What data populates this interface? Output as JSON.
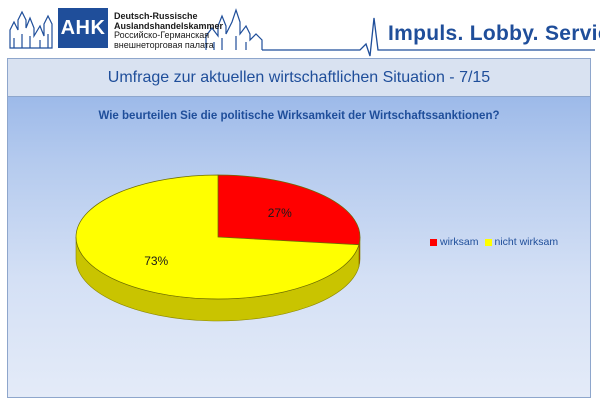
{
  "header": {
    "logo": "AHK",
    "org_line1": "Deutsch-Russische",
    "org_line2": "Auslandshandelskammer",
    "org_line3": "Российско-Германская",
    "org_line4": "внешнеторговая палата",
    "slogan": "Impuls. Lobby. Service."
  },
  "slide": {
    "title": "Umfrage zur aktuellen wirtschaftlichen Situation - 7/15"
  },
  "chart_data": {
    "type": "pie",
    "title": "Wie beurteilen Sie die politische Wirksamkeit der Wirtschaftssanktionen?",
    "categories": [
      "wirksam",
      "nicht wirksam"
    ],
    "values": [
      27,
      73
    ],
    "data_labels": [
      "27%",
      "73%"
    ],
    "colors": [
      "#ff0000",
      "#ffff00"
    ],
    "legend_position": "right",
    "style": "3d"
  }
}
